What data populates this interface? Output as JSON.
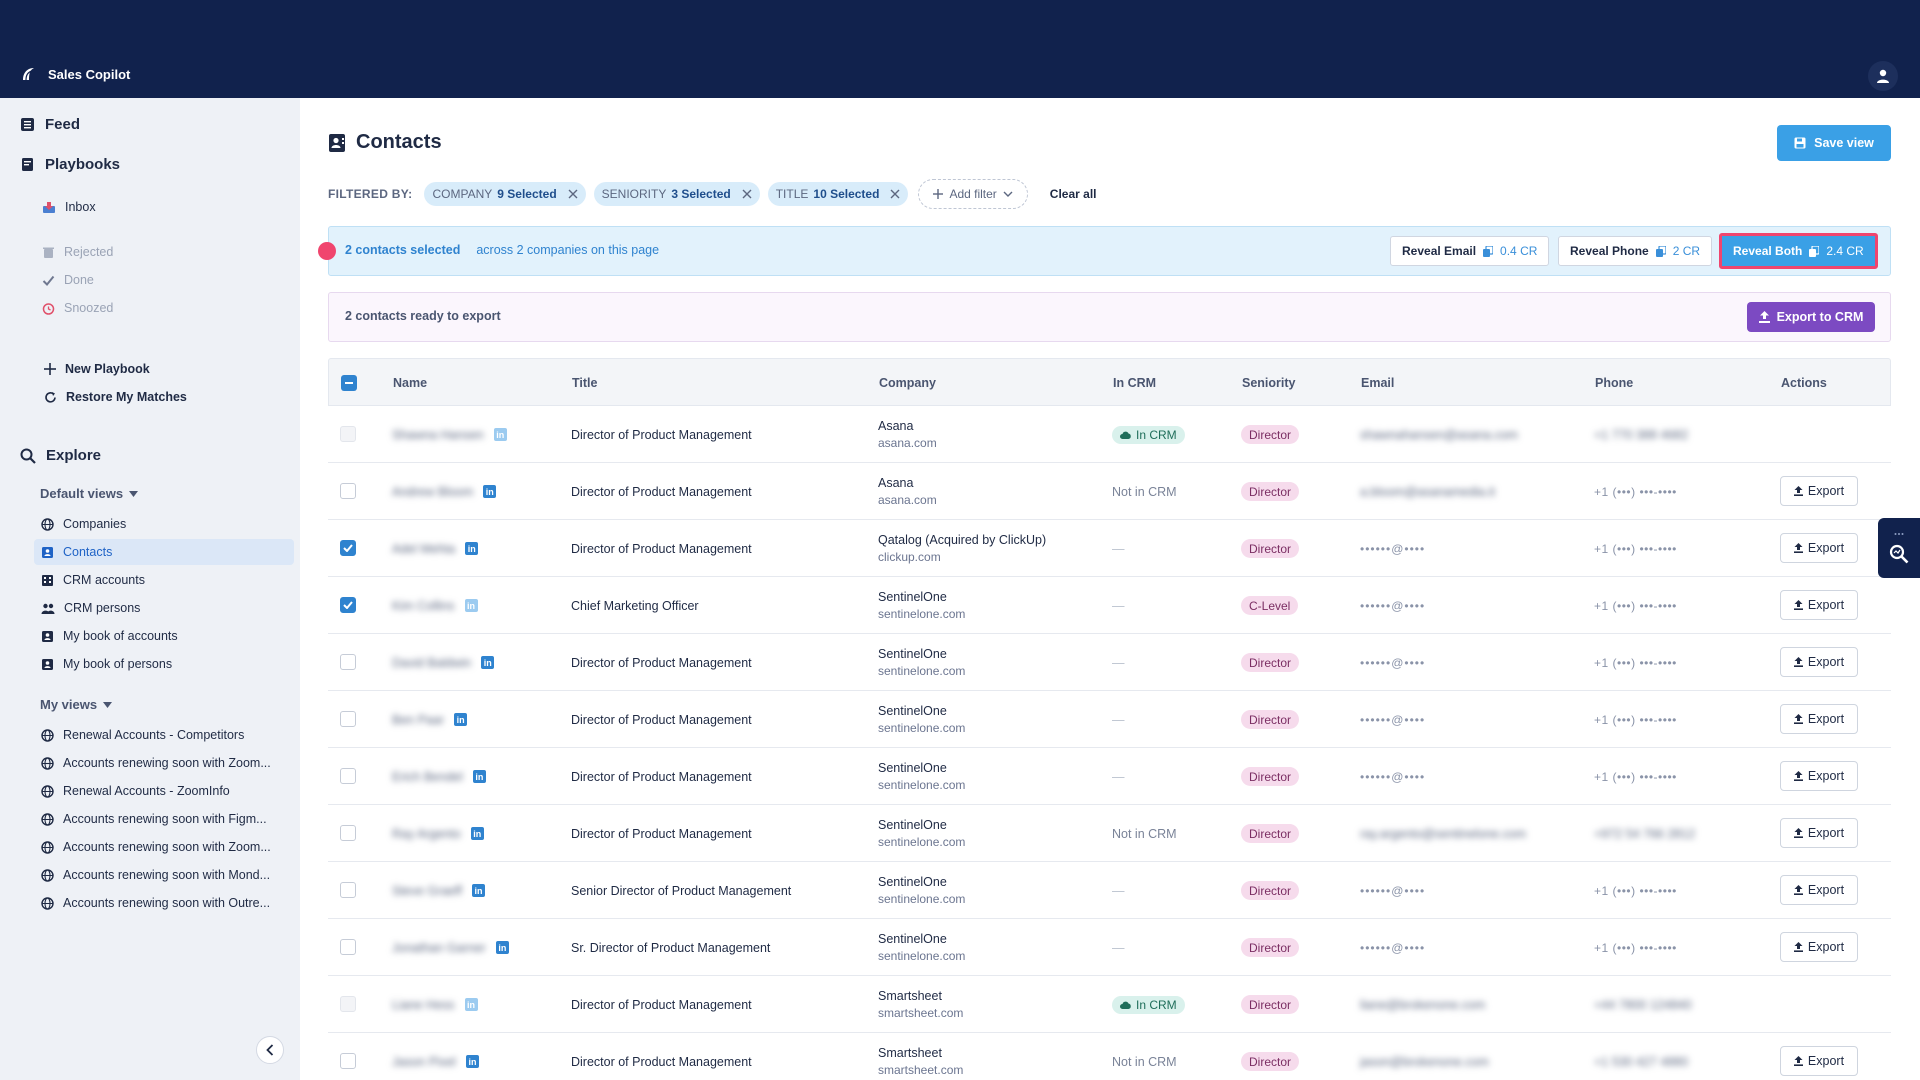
{
  "app": {
    "name": "Sales Copilot"
  },
  "sidebar": {
    "main": [
      {
        "label": "Feed"
      },
      {
        "label": "Playbooks"
      }
    ],
    "inbox": "Inbox",
    "statuses": [
      "Rejected",
      "Done",
      "Snoozed"
    ],
    "actions": [
      "New Playbook",
      "Restore My Matches"
    ],
    "explore": "Explore",
    "default_views_label": "Default views",
    "default_views": [
      "Companies",
      "Contacts",
      "CRM accounts",
      "CRM persons",
      "My book of accounts",
      "My book of persons"
    ],
    "my_views_label": "My views",
    "my_views": [
      "Renewal Accounts - Competitors",
      "Accounts renewing soon with Zoom...",
      "Renewal Accounts - ZoomInfo",
      "Accounts renewing soon with Figm...",
      "Accounts renewing soon with Zoom...",
      "Accounts renewing soon with Mond...",
      "Accounts renewing soon with Outre..."
    ]
  },
  "page": {
    "title": "Contacts",
    "save_view": "Save view"
  },
  "filters": {
    "label": "FILTERED BY:",
    "chips": [
      {
        "name": "COMPANY",
        "value": "9 Selected"
      },
      {
        "name": "SENIORITY",
        "value": "3 Selected"
      },
      {
        "name": "TITLE",
        "value": "10 Selected"
      }
    ],
    "add_filter": "Add filter",
    "clear_all": "Clear all"
  },
  "selection": {
    "count_text": "2 contacts selected",
    "scope_text": "across 2 companies on this page",
    "reveal_email": "Reveal Email",
    "reveal_email_cost": "0.4 CR",
    "reveal_phone": "Reveal Phone",
    "reveal_phone_cost": "2 CR",
    "reveal_both": "Reveal Both",
    "reveal_both_cost": "2.4 CR"
  },
  "export": {
    "text": "2 contacts ready to export",
    "button": "Export to CRM"
  },
  "table": {
    "headers": [
      "Name",
      "Title",
      "Company",
      "In CRM",
      "Seniority",
      "Email",
      "Phone",
      "Actions"
    ],
    "export_label": "Export",
    "rows": [
      {
        "name": "Shawna Hansen",
        "title": "Director of Product Management",
        "company": "Asana",
        "domain": "asana.com",
        "crm": "In CRM",
        "seniority": "Director",
        "email": "shawnahansen@asana.com",
        "phone": "+1 770 388 4682",
        "export": false,
        "checked": false,
        "disabled": true
      },
      {
        "name": "Andrew Bloom",
        "title": "Director of Product Management",
        "company": "Asana",
        "domain": "asana.com",
        "crm": "Not in CRM",
        "seniority": "Director",
        "email": "a.bloom@asanamedia.it",
        "phone": "+1 (•••) •••-••••",
        "export": true,
        "checked": false,
        "disabled": false
      },
      {
        "name": "Adel Mehta",
        "title": "Director of Product Management",
        "company": "Qatalog (Acquired by ClickUp)",
        "domain": "clickup.com",
        "crm": "—",
        "seniority": "Director",
        "email": "••••••@••••",
        "phone": "+1 (•••) •••-••••",
        "export": true,
        "checked": true,
        "disabled": false
      },
      {
        "name": "Kim Collins",
        "title": "Chief Marketing Officer",
        "company": "SentinelOne",
        "domain": "sentinelone.com",
        "crm": "—",
        "seniority": "C-Level",
        "email": "••••••@••••",
        "phone": "+1 (•••) •••-••••",
        "export": true,
        "checked": true,
        "disabled": false
      },
      {
        "name": "David Baldwin",
        "title": "Director of Product Management",
        "company": "SentinelOne",
        "domain": "sentinelone.com",
        "crm": "—",
        "seniority": "Director",
        "email": "••••••@••••",
        "phone": "+1 (•••) •••-••••",
        "export": true,
        "checked": false,
        "disabled": false
      },
      {
        "name": "Ben Paar",
        "title": "Director of Product Management",
        "company": "SentinelOne",
        "domain": "sentinelone.com",
        "crm": "—",
        "seniority": "Director",
        "email": "••••••@••••",
        "phone": "+1 (•••) •••-••••",
        "export": true,
        "checked": false,
        "disabled": false
      },
      {
        "name": "Erich Bendel",
        "title": "Director of Product Management",
        "company": "SentinelOne",
        "domain": "sentinelone.com",
        "crm": "—",
        "seniority": "Director",
        "email": "••••••@••••",
        "phone": "+1 (•••) •••-••••",
        "export": true,
        "checked": false,
        "disabled": false
      },
      {
        "name": "Ray Argento",
        "title": "Director of Product Management",
        "company": "SentinelOne",
        "domain": "sentinelone.com",
        "crm": "Not in CRM",
        "seniority": "Director",
        "email": "ray.argento@sentinelone.com",
        "phone": "+972 54 766 2812",
        "export": true,
        "checked": false,
        "disabled": false
      },
      {
        "name": "Steve Graeff",
        "title": "Senior Director of Product Management",
        "company": "SentinelOne",
        "domain": "sentinelone.com",
        "crm": "—",
        "seniority": "Director",
        "email": "••••••@••••",
        "phone": "+1 (•••) •••-••••",
        "export": true,
        "checked": false,
        "disabled": false
      },
      {
        "name": "Jonathan Garner",
        "title": "Sr. Director of Product Management",
        "company": "SentinelOne",
        "domain": "sentinelone.com",
        "crm": "—",
        "seniority": "Director",
        "email": "••••••@••••",
        "phone": "+1 (•••) •••-••••",
        "export": true,
        "checked": false,
        "disabled": false
      },
      {
        "name": "Liane Hess",
        "title": "Director of Product Management",
        "company": "Smartsheet",
        "domain": "smartsheet.com",
        "crm": "In CRM",
        "seniority": "Director",
        "email": "liane@brokenone.com",
        "phone": "+44 7800 124840",
        "export": false,
        "checked": false,
        "disabled": true
      },
      {
        "name": "Jason Pixel",
        "title": "Director of Product Management",
        "company": "Smartsheet",
        "domain": "smartsheet.com",
        "crm": "Not in CRM",
        "seniority": "Director",
        "email": "jason@brokenone.com",
        "phone": "+1 530 427 4880",
        "export": true,
        "checked": false,
        "disabled": false
      }
    ]
  },
  "colors": {
    "topbar": "#11224d",
    "accent": "#3aa0e6",
    "crm_purple": "#7c4ac2",
    "highlight": "#f0456e"
  }
}
